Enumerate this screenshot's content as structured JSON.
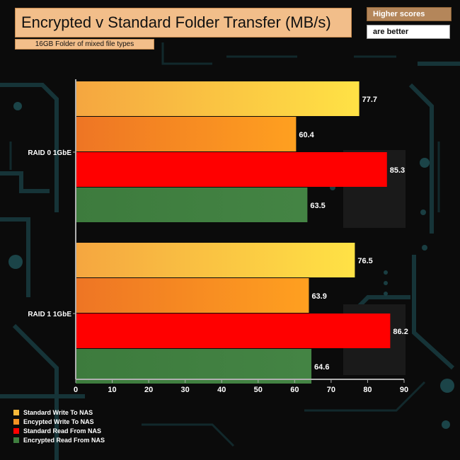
{
  "header": {
    "title": "Encrypted v Standard Folder Transfer (MB/s)",
    "subtitle": "16GB Folder of mixed file types",
    "note_line1": "Higher scores",
    "note_line2": "are better"
  },
  "colors": {
    "standard_write": "#f9b93a",
    "encrypted_write": "#f39324",
    "standard_read": "#ff0000",
    "encrypted_read": "#3f7f3f",
    "axis": "#b0b0b0",
    "text": "#ffffff"
  },
  "chart_data": {
    "type": "bar",
    "orientation": "horizontal",
    "categories": [
      "RAID 0 1GbE",
      "RAID 1 1GbE"
    ],
    "series": [
      {
        "name": "Standard Write To NAS",
        "values": [
          77.7,
          76.5
        ]
      },
      {
        "name": "Encypted Write To NAS",
        "values": [
          60.4,
          63.9
        ]
      },
      {
        "name": "Standard Read From NAS",
        "values": [
          85.3,
          86.2
        ]
      },
      {
        "name": "Encrypted Read From NAS",
        "values": [
          63.5,
          64.6
        ]
      }
    ],
    "xlim": [
      0,
      90
    ],
    "x_ticks": [
      "0",
      "10",
      "20",
      "30",
      "40",
      "50",
      "60",
      "70",
      "80",
      "90"
    ],
    "data_labels": true,
    "legend_position": "bottom-left",
    "grid": false
  }
}
